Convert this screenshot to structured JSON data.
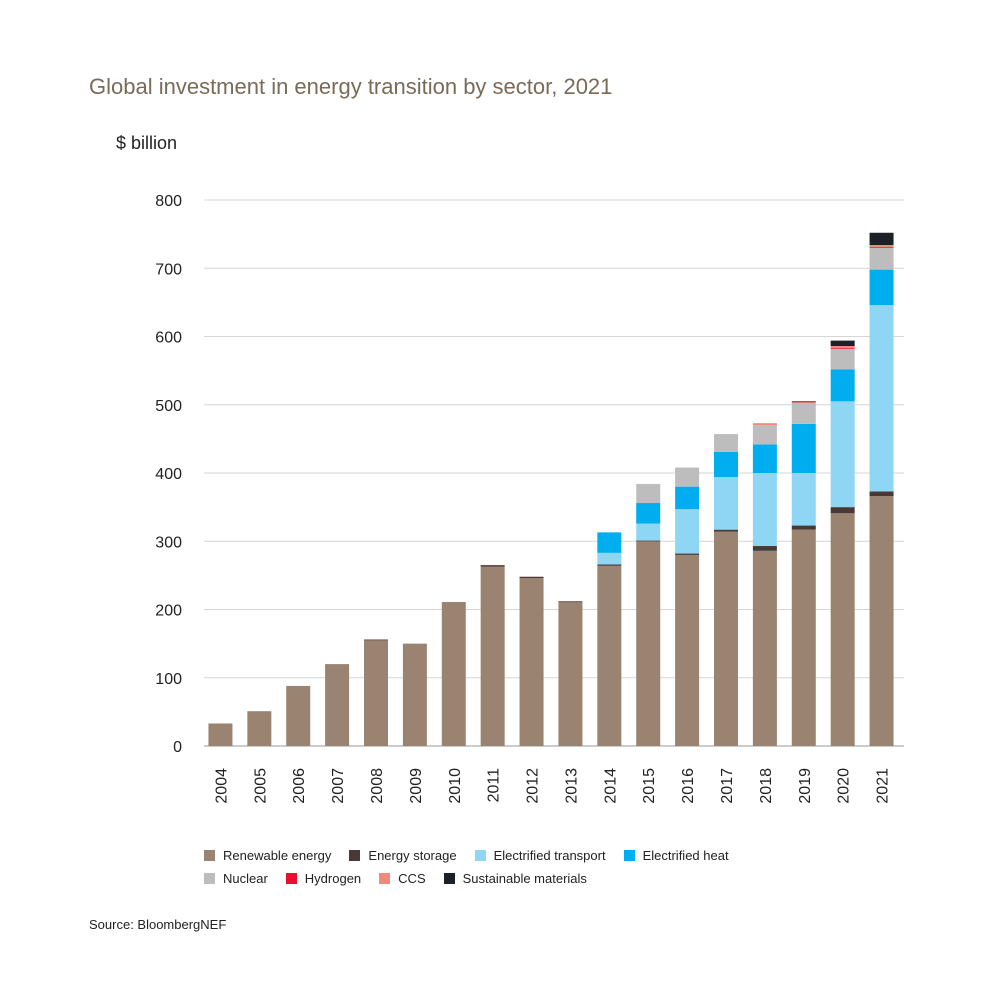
{
  "title": "Global investment in energy transition by sector, 2021",
  "unit_label": "$ billion",
  "source": "Source: BloombergNEF",
  "chart_data": {
    "type": "bar",
    "stacked": true,
    "title": "Global investment in energy transition by sector, 2021",
    "ylabel": "$ billion",
    "xlabel": "",
    "ylim": [
      0,
      800
    ],
    "yticks": [
      0,
      100,
      200,
      300,
      400,
      500,
      600,
      700,
      800
    ],
    "grid": true,
    "legend_position": "bottom",
    "categories": [
      "2004",
      "2005",
      "2006",
      "2007",
      "2008",
      "2009",
      "2010",
      "2011",
      "2012",
      "2013",
      "2014",
      "2015",
      "2016",
      "2017",
      "2018",
      "2019",
      "2020",
      "2021"
    ],
    "series": [
      {
        "name": "Renewable energy",
        "color": "#9a8370",
        "values": [
          33,
          51,
          88,
          120,
          155,
          150,
          211,
          263,
          246,
          211,
          264,
          300,
          280,
          314,
          286,
          317,
          341,
          366
        ]
      },
      {
        "name": "Energy storage",
        "color": "#4a3835",
        "values": [
          0,
          0,
          0,
          0,
          1,
          0,
          0,
          2,
          2,
          1,
          2,
          1,
          2,
          3,
          7,
          6,
          9,
          7
        ]
      },
      {
        "name": "Electrified transport",
        "color": "#8fd6f5",
        "values": [
          0,
          0,
          0,
          0,
          0,
          0,
          0,
          0,
          0,
          0,
          17,
          25,
          65,
          77,
          107,
          77,
          155,
          273
        ]
      },
      {
        "name": "Electrified heat",
        "color": "#00adef",
        "values": [
          0,
          0,
          0,
          0,
          0,
          0,
          0,
          0,
          0,
          0,
          30,
          30,
          33,
          37,
          42,
          72,
          47,
          52
        ]
      },
      {
        "name": "Nuclear",
        "color": "#bdbdbd",
        "values": [
          0,
          0,
          0,
          0,
          0,
          0,
          0,
          0,
          0,
          0,
          0,
          28,
          28,
          26,
          28,
          30,
          30,
          32
        ]
      },
      {
        "name": "Hydrogen",
        "color": "#e8112d",
        "values": [
          0,
          0,
          0,
          0,
          0,
          0,
          0,
          0,
          0,
          0,
          0,
          0,
          0,
          0,
          0,
          0,
          1,
          1
        ]
      },
      {
        "name": "CCS",
        "color": "#f08a7a",
        "values": [
          0,
          0,
          0,
          0,
          0,
          0,
          0,
          0,
          0,
          0,
          0,
          0,
          0,
          0,
          3,
          2,
          3,
          3
        ]
      },
      {
        "name": "Sustainable materials",
        "color": "#1c2127",
        "values": [
          0,
          0,
          0,
          0,
          0,
          0,
          0,
          0,
          0,
          0,
          0,
          0,
          0,
          0,
          0,
          1,
          8,
          18
        ]
      }
    ]
  }
}
